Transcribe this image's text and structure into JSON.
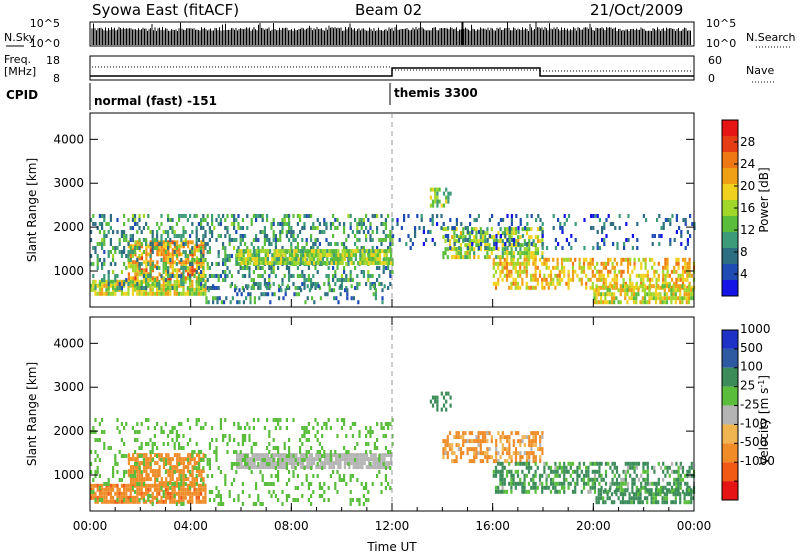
{
  "header": {
    "station": "Syowa East (fitACF)",
    "beam": "Beam 02",
    "date": "21/Oct/2009"
  },
  "left_labels": {
    "nsky": "N.Sky",
    "freq_line1": "Freq.",
    "freq_line2": "[MHz]",
    "cpid": "CPID",
    "nsky_ticks": [
      "10^5",
      "10^0"
    ],
    "freq_ticks": [
      "18",
      "8"
    ]
  },
  "right_labels": {
    "nsearch": "N.Search",
    "nave": "Nave",
    "nsearch_ticks": [
      "10^5",
      "10^0"
    ],
    "nave_ticks": [
      "60",
      "0"
    ]
  },
  "cpid_segments": [
    {
      "label": "normal (fast) -151",
      "start_hour": 0
    },
    {
      "label": "themis 3300",
      "start_hour": 12
    }
  ],
  "chart_data": [
    {
      "type": "heatmap",
      "panel": "power",
      "xlabel": "",
      "ylabel": "Slant Range [km]",
      "xlim": [
        0,
        24
      ],
      "ylim": [
        180,
        4600
      ],
      "yticks": [
        1000,
        2000,
        3000,
        4000
      ],
      "colorbar": {
        "label": "Power [dB]",
        "range": [
          0,
          32
        ],
        "ticks": [
          4,
          8,
          12,
          16,
          20,
          24,
          28
        ],
        "colors": [
          "#1414e6",
          "#1e4bb4",
          "#2d6e82",
          "#3c9b78",
          "#5abe3c",
          "#a0d728",
          "#f0d21e",
          "#f0a014",
          "#f07814",
          "#e63c14",
          "#e61414"
        ]
      },
      "echo_regions": [
        {
          "t0": 0.0,
          "t1": 4.6,
          "r0": 450,
          "r1": 800,
          "value": 18,
          "density": 0.85
        },
        {
          "t0": 1.5,
          "t1": 4.5,
          "r0": 800,
          "r1": 1700,
          "value": 22,
          "density": 0.7
        },
        {
          "t0": 0.0,
          "t1": 12.0,
          "r0": 600,
          "r1": 2300,
          "value": 10,
          "density": 0.35
        },
        {
          "t0": 5.8,
          "t1": 12.0,
          "r0": 1200,
          "r1": 1500,
          "value": 15,
          "density": 0.9
        },
        {
          "t0": 4.5,
          "t1": 12.0,
          "r0": 300,
          "r1": 700,
          "value": 8,
          "density": 0.2
        },
        {
          "t0": 14.0,
          "t1": 18.0,
          "r0": 1300,
          "r1": 2000,
          "value": 16,
          "density": 0.6
        },
        {
          "t0": 16.0,
          "t1": 24.0,
          "r0": 600,
          "r1": 1300,
          "value": 20,
          "density": 0.55
        },
        {
          "t0": 20.0,
          "t1": 24.0,
          "r0": 300,
          "r1": 700,
          "value": 18,
          "density": 0.7
        },
        {
          "t0": 13.5,
          "t1": 14.3,
          "r0": 2500,
          "r1": 2900,
          "value": 14,
          "density": 0.5
        },
        {
          "t0": 12.0,
          "t1": 24.0,
          "r0": 1500,
          "r1": 2300,
          "value": 6,
          "density": 0.18
        }
      ]
    },
    {
      "type": "heatmap",
      "panel": "velocity",
      "xlabel": "Time UT",
      "ylabel": "Slant Range [km]",
      "xlim": [
        0,
        24
      ],
      "ylim": [
        180,
        4600
      ],
      "xticks": [
        "00:00",
        "04:00",
        "08:00",
        "12:00",
        "16:00",
        "20:00",
        "00:00"
      ],
      "yticks": [
        1000,
        2000,
        3000,
        4000
      ],
      "colorbar": {
        "label": "Velocity [m s^-1]",
        "tick_labels": [
          "1000",
          "500",
          "100",
          "25",
          "-25",
          "-100",
          "-500",
          "-1000"
        ],
        "colors": [
          "#1e32c8",
          "#2d5aa0",
          "#3c8c5a",
          "#5abe3c",
          "#b4b4b4",
          "#f0b450",
          "#f08c28",
          "#f05a14",
          "#e61414"
        ]
      },
      "echo_regions": [
        {
          "t0": 0.0,
          "t1": 4.6,
          "r0": 350,
          "r1": 800,
          "value": -400,
          "density": 0.85
        },
        {
          "t0": 1.5,
          "t1": 4.5,
          "r0": 800,
          "r1": 1500,
          "value": -300,
          "density": 0.7
        },
        {
          "t0": 5.8,
          "t1": 12.0,
          "r0": 1200,
          "r1": 1500,
          "value": 0,
          "density": 0.85
        },
        {
          "t0": 0.0,
          "t1": 12.0,
          "r0": 300,
          "r1": 2300,
          "value": 50,
          "density": 0.18
        },
        {
          "t0": 14.0,
          "t1": 18.0,
          "r0": 1300,
          "r1": 2000,
          "value": -150,
          "density": 0.5
        },
        {
          "t0": 16.0,
          "t1": 24.0,
          "r0": 600,
          "r1": 1300,
          "value": 150,
          "density": 0.5
        },
        {
          "t0": 20.0,
          "t1": 24.0,
          "r0": 350,
          "r1": 700,
          "value": 200,
          "density": 0.6
        },
        {
          "t0": 13.5,
          "t1": 14.3,
          "r0": 2500,
          "r1": 2900,
          "value": 300,
          "density": 0.5
        }
      ]
    }
  ]
}
